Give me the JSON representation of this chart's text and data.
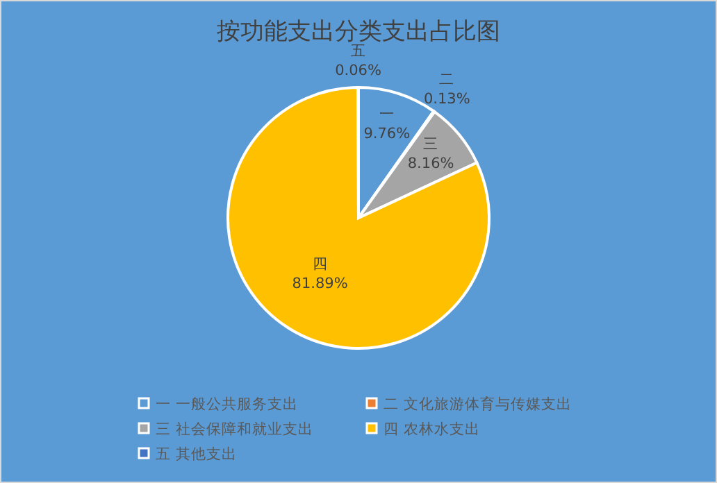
{
  "chart_data": {
    "type": "pie",
    "title": "按功能支出分类支出占比图",
    "categories": [
      "一 一般公共服务支出",
      "二 文化旅游体育与传媒支出",
      "三 社会保障和就业支出",
      "四 农林水支出",
      "五 其他支出"
    ],
    "values": [
      9.76,
      0.13,
      8.16,
      81.89,
      0.06
    ],
    "colors": [
      "#5b9bd5",
      "#ed7d31",
      "#a5a5a5",
      "#ffc000",
      "#4472c4"
    ],
    "value_labels": [
      "一\n9.76%",
      "二\n0.13%",
      "三\n8.16%",
      "四\n81.89%",
      "五\n0.06%"
    ],
    "legend": "bottom"
  }
}
